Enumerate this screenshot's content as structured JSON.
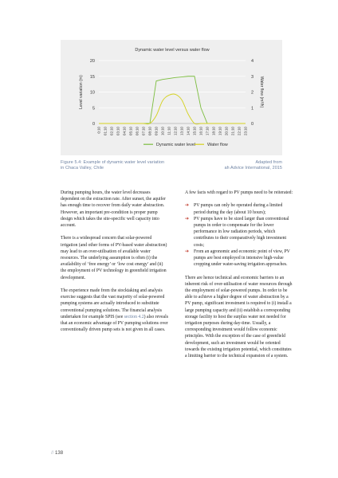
{
  "chart_data": {
    "type": "line",
    "title": "Dynamic water level versus water flow",
    "ylabel_left": "Level variation (m)",
    "ylabel_right": "Water flow (m³/h)",
    "y_left_ticks": [
      "0",
      "5",
      "10",
      "15",
      "20"
    ],
    "y_left_lim": [
      0,
      20
    ],
    "y_right_ticks": [
      "0",
      "1",
      "2",
      "3",
      "4"
    ],
    "y_right_lim": [
      0,
      4
    ],
    "categories": [
      "0:10",
      "01:10",
      "02:10",
      "03:10",
      "04:10",
      "05:10",
      "06:10",
      "07:10",
      "08:10",
      "09:10",
      "10:10",
      "11:10",
      "12:10",
      "13:10",
      "14:10",
      "15:10",
      "16:10",
      "17:10",
      "18:10",
      "19:10",
      "20:10",
      "21:10",
      "22:10",
      "23:10"
    ],
    "grid": true,
    "legend_position": "bottom",
    "series": [
      {
        "name": "Dynamic water level",
        "color": "#7cbd3f",
        "axis": "left",
        "values": [
          0,
          0,
          0,
          0,
          0,
          0,
          0,
          0,
          0,
          13.5,
          14.0,
          14.3,
          14.6,
          14.8,
          15.0,
          15.0,
          5.0,
          0,
          0,
          0,
          0,
          0,
          0,
          0
        ]
      },
      {
        "name": "Water flow",
        "color": "#d4d11c",
        "axis": "right",
        "values": [
          0,
          0,
          0,
          0,
          0,
          0,
          0,
          0,
          0,
          0.5,
          1.45,
          1.8,
          1.85,
          1.5,
          0.6,
          0,
          0,
          0,
          0,
          0,
          0,
          0,
          0,
          0
        ]
      }
    ]
  },
  "caption": {
    "left_line1": "Figure 5.4: Example of dynamic water level variation",
    "left_line2": "in Chaca Valley, Chile",
    "right_line1": "Adapted from",
    "right_line2": "ah Advice International, 2015"
  },
  "body": {
    "left_p1": "During pumping hours, the water level decreases dependent on the extraction rate. After sunset, the aquifer has enough time to recover from daily water abstraction. However, an important pre-condition is proper pump design which takes the site-specific well capacity into account.",
    "left_p2": "There is a widespread concern that solar-powered irrigation (and other forms of PV-based water abstraction) may lead to an over-utilisation of available water resources. The underlying assumption is often (i) the availability of ‘free energy’ or ‘low cost energy’ and (ii) the employment of PV technology in greenfield irrigation development.",
    "left_p3_a": "The experience made from the stocktaking and analysis exercise suggests that the vast majority of solar-powered pumping systems are actually introduced to substitute conventional pumping solutions. The financial analysis undertaken for example SPIS (see ",
    "left_p3_link": "section 4.2",
    "left_p3_b": ") also reveals that an economic advantage of PV pumping solutions over conventionally driven pump sets is not given in all cases.",
    "right_intro": "A few facts with regard to PV pumps need to be reiterated:",
    "bullet_1": "PV pumps can only be operated during a limited period during the day (about 10 hours);",
    "bullet_2": "PV pumps have to be sized larger than conventional pumps in order to compensate for the lower performance in low radiation periods, which contributes to their comparatively high investment costs;",
    "bullet_3": "From an agronomic and economic point of view, PV pumps are best employed in intensive high-value cropping under water-saving irrigation approaches.",
    "right_p2": "There are hence technical and economic barriers to an inherent risk of over-utilisation of water resources through the employment of solar-powered pumps. In order to be able to achieve a higher degree of water abstraction by a PV pump, significant investment is required to (i) install a large pumping capacity and (ii) establish a corresponding storage facility to host the surplus water not needed for irrigation purposes during day-time. Usually, a corresponding investment would follow economic principles. With the exception of the case of greenfield development, such an investment would be oriented towards the existing irrigation potential, which constitutes a limiting barrier to the technical expansion of a system."
  },
  "footer": {
    "slashes": "//",
    "page_number": "138"
  }
}
